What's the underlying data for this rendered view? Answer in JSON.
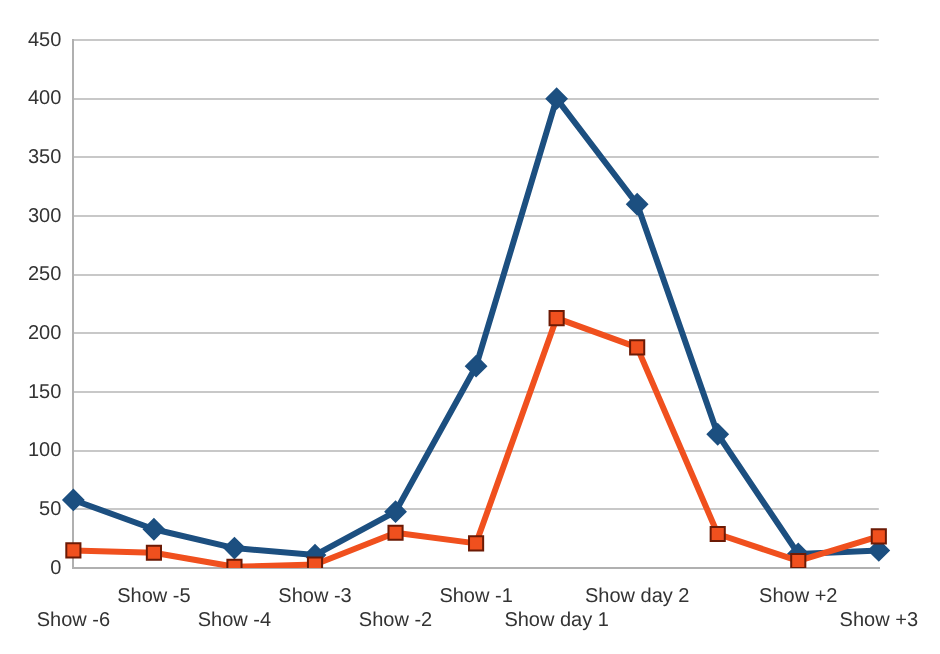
{
  "chart_data": {
    "type": "line",
    "categories": [
      "Show -6",
      "Show -5",
      "Show -4",
      "Show -3",
      "Show -2",
      "Show -1",
      "Show day 1",
      "Show day 2",
      null,
      "Show +2",
      "Show +3"
    ],
    "series": [
      {
        "color": "#1c4f80",
        "marker": "diamond",
        "values": [
          58,
          33,
          17,
          11,
          48,
          172,
          400,
          310,
          114,
          12,
          15
        ]
      },
      {
        "color": "#f0501e",
        "marker": "square",
        "values": [
          15,
          13,
          1,
          3,
          30,
          21,
          213,
          188,
          29,
          6,
          27
        ]
      }
    ],
    "ylim": [
      0,
      450
    ],
    "yticks": [
      0,
      50,
      100,
      150,
      200,
      250,
      300,
      350,
      400,
      450
    ],
    "grid": "y",
    "legend": false,
    "line_style": "solid"
  }
}
